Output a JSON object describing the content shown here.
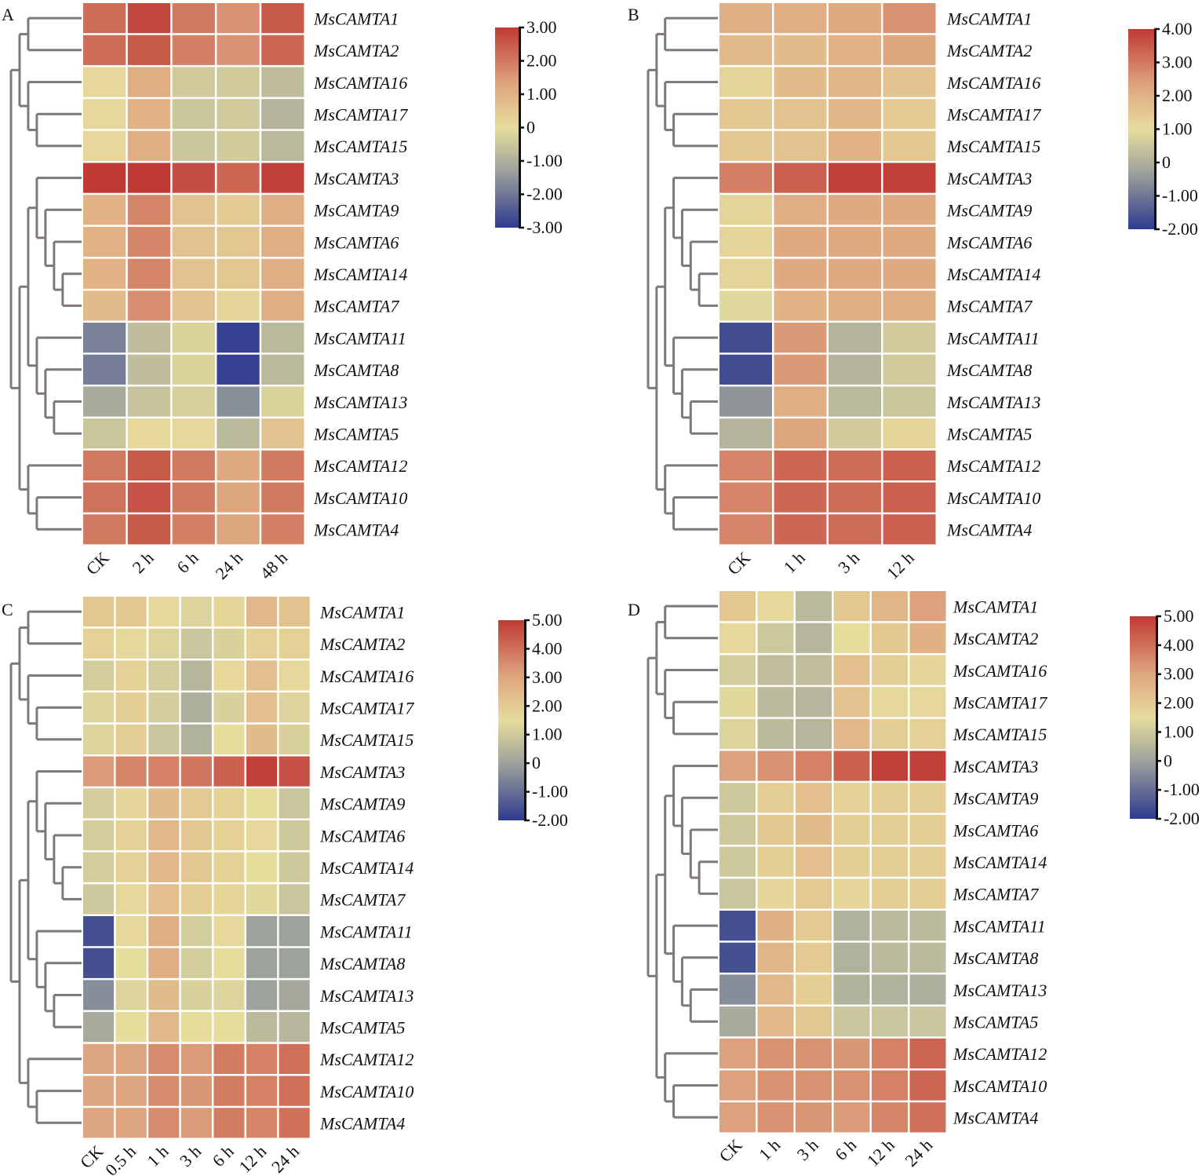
{
  "colors": {
    "low": "#2f3b8f",
    "mid_grey": "#a3a79c",
    "zero": "#e6dc9c",
    "mid_orange": "#dea57f",
    "high": "#bf3a33",
    "cell_gap": "#ffffff",
    "dendrogram": "#7f7878"
  },
  "chart_data": [
    {
      "type": "heatmap",
      "panel": "A",
      "title": "",
      "xlabel": "",
      "ylabel": "",
      "colorbar": {
        "range": [
          -3,
          3
        ],
        "ticks": [
          "3.00",
          "2.00",
          "1.00",
          "0",
          "-1.00",
          "-2.00",
          "-3.00"
        ],
        "tick_values": [
          3,
          2,
          1,
          0,
          -1,
          -2,
          -3
        ],
        "zero_value": 0
      },
      "columns": [
        "CK",
        "2 h",
        "6 h",
        "24 h",
        "48 h"
      ],
      "rows": [
        "MsCAMTA1",
        "MsCAMTA2",
        "MsCAMTA16",
        "MsCAMTA17",
        "MsCAMTA15",
        "MsCAMTA3",
        "MsCAMTA9",
        "MsCAMTA6",
        "MsCAMTA14",
        "MsCAMTA7",
        "MsCAMTA11",
        "MsCAMTA8",
        "MsCAMTA13",
        "MsCAMTA5",
        "MsCAMTA12",
        "MsCAMTA10",
        "MsCAMTA4"
      ],
      "values": [
        [
          2.2,
          2.8,
          2.0,
          1.6,
          2.5
        ],
        [
          2.2,
          2.5,
          1.9,
          1.6,
          2.3
        ],
        [
          0.1,
          1.1,
          -0.4,
          -0.4,
          -0.7
        ],
        [
          0.1,
          1.0,
          -0.5,
          -0.4,
          -0.9
        ],
        [
          0.1,
          1.1,
          -0.5,
          -0.4,
          -0.8
        ],
        [
          3.0,
          3.0,
          2.7,
          2.3,
          2.9
        ],
        [
          1.0,
          1.8,
          0.6,
          0.4,
          1.1
        ],
        [
          1.0,
          1.8,
          0.6,
          0.5,
          1.1
        ],
        [
          1.0,
          1.8,
          0.6,
          0.5,
          1.1
        ],
        [
          0.8,
          1.7,
          0.6,
          0.2,
          1.1
        ],
        [
          -1.8,
          -0.7,
          -0.2,
          -2.9,
          -0.8
        ],
        [
          -1.9,
          -0.7,
          -0.2,
          -2.9,
          -0.8
        ],
        [
          -1.1,
          -0.6,
          -0.3,
          -1.6,
          -0.2
        ],
        [
          -0.5,
          0.1,
          0.1,
          -0.8,
          0.6
        ],
        [
          2.0,
          2.5,
          2.0,
          1.2,
          2.0
        ],
        [
          2.1,
          2.6,
          2.0,
          1.3,
          2.0
        ],
        [
          2.0,
          2.5,
          1.9,
          1.3,
          1.9
        ]
      ],
      "dendrogram": "((MsCAMTA1,MsCAMTA2),(MsCAMTA16,(MsCAMTA17,MsCAMTA15))),(((MsCAMTA3,(MsCAMTA9,(MsCAMTA6,(MsCAMTA14,MsCAMTA7)))),(MsCAMTA11,(MsCAMTA8,(MsCAMTA13,MsCAMTA5)))),(MsCAMTA12,(MsCAMTA10,MsCAMTA4)))"
    },
    {
      "type": "heatmap",
      "panel": "B",
      "title": "",
      "xlabel": "",
      "ylabel": "",
      "colorbar": {
        "range": [
          -2,
          4
        ],
        "ticks": [
          "4.00",
          "3.00",
          "2.00",
          "1.00",
          "0",
          "-1.00",
          "-2.00"
        ],
        "tick_values": [
          4,
          3,
          2,
          1,
          0,
          -1,
          -2
        ],
        "zero_value": 1
      },
      "columns": [
        "CK",
        "1 h",
        "3 h",
        "12 h"
      ],
      "rows": [
        "MsCAMTA1",
        "MsCAMTA2",
        "MsCAMTA16",
        "MsCAMTA17",
        "MsCAMTA15",
        "MsCAMTA3",
        "MsCAMTA9",
        "MsCAMTA6",
        "MsCAMTA14",
        "MsCAMTA7",
        "MsCAMTA11",
        "MsCAMTA8",
        "MsCAMTA13",
        "MsCAMTA5",
        "MsCAMTA12",
        "MsCAMTA10",
        "MsCAMTA4"
      ],
      "values": [
        [
          2.1,
          2.1,
          2.2,
          2.6
        ],
        [
          1.8,
          1.8,
          2.0,
          2.3
        ],
        [
          1.2,
          1.8,
          1.9,
          1.6
        ],
        [
          1.5,
          1.6,
          1.9,
          1.4
        ],
        [
          1.5,
          1.6,
          2.0,
          1.5
        ],
        [
          2.9,
          3.4,
          3.9,
          3.9
        ],
        [
          1.2,
          2.1,
          2.2,
          2.2
        ],
        [
          1.2,
          2.2,
          2.2,
          2.2
        ],
        [
          1.2,
          2.2,
          2.2,
          2.2
        ],
        [
          0.9,
          2.0,
          2.1,
          2.1
        ],
        [
          -1.7,
          2.5,
          0.1,
          0.6
        ],
        [
          -1.7,
          2.5,
          0.1,
          0.6
        ],
        [
          -0.5,
          2.1,
          0.2,
          0.5
        ],
        [
          0.1,
          2.3,
          0.6,
          1.2
        ],
        [
          2.8,
          3.3,
          3.2,
          3.4
        ],
        [
          2.8,
          3.3,
          3.2,
          3.4
        ],
        [
          2.8,
          3.3,
          3.2,
          3.4
        ]
      ],
      "dendrogram": "((MsCAMTA1,MsCAMTA2),(MsCAMTA16,(MsCAMTA17,MsCAMTA15))),(((MsCAMTA3,(MsCAMTA9,(MsCAMTA6,(MsCAMTA14,MsCAMTA7)))),(MsCAMTA11,(MsCAMTA8,(MsCAMTA13,MsCAMTA5)))),(MsCAMTA12,(MsCAMTA10,MsCAMTA4)))"
    },
    {
      "type": "heatmap",
      "panel": "C",
      "title": "",
      "xlabel": "",
      "ylabel": "",
      "colorbar": {
        "range": [
          -2,
          5
        ],
        "ticks": [
          "5.00",
          "4.00",
          "3.00",
          "2.00",
          "1.00",
          "0",
          "-1.00",
          "-2.00"
        ],
        "tick_values": [
          5,
          4,
          3,
          2,
          1,
          0,
          -1,
          -2
        ],
        "zero_value": 1.5
      },
      "columns": [
        "CK",
        "0.5 h",
        "1 h",
        "3 h",
        "6 h",
        "12 h",
        "24 h"
      ],
      "rows": [
        "MsCAMTA1",
        "MsCAMTA2",
        "MsCAMTA16",
        "MsCAMTA17",
        "MsCAMTA15",
        "MsCAMTA3",
        "MsCAMTA9",
        "MsCAMTA6",
        "MsCAMTA14",
        "MsCAMTA7",
        "MsCAMTA11",
        "MsCAMTA8",
        "MsCAMTA13",
        "MsCAMTA5",
        "MsCAMTA12",
        "MsCAMTA10",
        "MsCAMTA4"
      ],
      "values": [
        [
          2.1,
          2.1,
          1.6,
          1.3,
          1.7,
          2.5,
          2.2
        ],
        [
          1.8,
          1.6,
          1.3,
          0.9,
          1.2,
          1.8,
          1.8
        ],
        [
          1.1,
          1.8,
          1.1,
          0.5,
          1.6,
          2.3,
          1.6
        ],
        [
          1.3,
          1.9,
          1.1,
          0.3,
          1.2,
          2.3,
          1.3
        ],
        [
          1.3,
          1.9,
          0.9,
          0.4,
          1.5,
          2.4,
          1.2
        ],
        [
          3.2,
          3.6,
          3.7,
          3.9,
          4.3,
          4.9,
          4.6
        ],
        [
          1.1,
          1.7,
          2.4,
          2.0,
          1.8,
          1.5,
          0.9
        ],
        [
          1.1,
          1.8,
          2.5,
          2.1,
          1.8,
          1.6,
          1.0
        ],
        [
          1.1,
          1.8,
          2.5,
          2.1,
          1.8,
          1.5,
          1.0
        ],
        [
          1.0,
          1.6,
          2.3,
          1.9,
          1.7,
          1.4,
          0.9
        ],
        [
          -1.6,
          1.6,
          2.8,
          1.1,
          1.6,
          0.0,
          0.0
        ],
        [
          -1.6,
          1.5,
          2.8,
          1.1,
          1.5,
          0.0,
          0.0
        ],
        [
          -0.4,
          1.3,
          2.4,
          1.2,
          1.3,
          0.0,
          0.1
        ],
        [
          0.2,
          1.5,
          2.5,
          1.5,
          1.5,
          0.6,
          0.5
        ],
        [
          3.0,
          3.0,
          3.5,
          3.2,
          3.8,
          3.7,
          4.0
        ],
        [
          3.0,
          3.0,
          3.5,
          3.3,
          3.8,
          3.7,
          4.0
        ],
        [
          3.0,
          3.0,
          3.5,
          3.2,
          3.8,
          3.6,
          4.0
        ]
      ],
      "dendrogram": "((MsCAMTA1,MsCAMTA2),(MsCAMTA16,(MsCAMTA17,MsCAMTA15))),(((MsCAMTA3,(MsCAMTA9,(MsCAMTA6,(MsCAMTA14,MsCAMTA7)))),(MsCAMTA11,(MsCAMTA8,(MsCAMTA13,MsCAMTA5)))),(MsCAMTA12,(MsCAMTA10,MsCAMTA4)))"
    },
    {
      "type": "heatmap",
      "panel": "D",
      "title": "",
      "xlabel": "",
      "ylabel": "",
      "colorbar": {
        "range": [
          -2,
          5
        ],
        "ticks": [
          "5.00",
          "4.00",
          "3.00",
          "2.00",
          "1.00",
          "0",
          "-1.00",
          "-2.00"
        ],
        "tick_values": [
          5,
          4,
          3,
          2,
          1,
          0,
          -1,
          -2
        ],
        "zero_value": 1.5
      },
      "columns": [
        "CK",
        "1 h",
        "3 h",
        "6 h",
        "12 h",
        "24 h"
      ],
      "rows": [
        "MsCAMTA1",
        "MsCAMTA2",
        "MsCAMTA16",
        "MsCAMTA17",
        "MsCAMTA15",
        "MsCAMTA3",
        "MsCAMTA9",
        "MsCAMTA6",
        "MsCAMTA14",
        "MsCAMTA7",
        "MsCAMTA11",
        "MsCAMTA8",
        "MsCAMTA13",
        "MsCAMTA5",
        "MsCAMTA12",
        "MsCAMTA10",
        "MsCAMTA4"
      ],
      "values": [
        [
          2.1,
          1.6,
          0.6,
          2.1,
          2.6,
          3.1
        ],
        [
          1.6,
          1.0,
          0.5,
          1.5,
          2.1,
          2.7
        ],
        [
          1.1,
          0.7,
          0.7,
          2.3,
          1.9,
          1.7
        ],
        [
          1.4,
          0.6,
          0.5,
          2.2,
          1.6,
          1.6
        ],
        [
          1.3,
          0.6,
          0.5,
          2.5,
          1.9,
          1.8
        ],
        [
          3.1,
          3.4,
          3.7,
          4.3,
          4.9,
          4.9
        ],
        [
          1.0,
          1.9,
          2.3,
          1.8,
          1.9,
          1.9
        ],
        [
          1.0,
          2.1,
          2.4,
          1.9,
          1.9,
          1.9
        ],
        [
          1.0,
          1.9,
          2.3,
          1.9,
          1.9,
          1.9
        ],
        [
          0.9,
          1.7,
          2.0,
          1.7,
          1.9,
          1.9
        ],
        [
          -1.6,
          2.7,
          2.0,
          0.4,
          0.6,
          0.6
        ],
        [
          -1.6,
          2.6,
          2.0,
          0.4,
          0.6,
          0.6
        ],
        [
          -0.4,
          2.5,
          1.9,
          0.4,
          0.4,
          0.3
        ],
        [
          0.2,
          2.5,
          2.1,
          0.9,
          0.9,
          0.9
        ],
        [
          3.1,
          3.4,
          3.4,
          3.3,
          3.7,
          4.2
        ],
        [
          3.1,
          3.4,
          3.4,
          3.4,
          3.7,
          4.2
        ],
        [
          3.1,
          3.4,
          3.3,
          3.2,
          3.6,
          4.0
        ]
      ],
      "dendrogram": "((MsCAMTA1,MsCAMTA2),(MsCAMTA16,(MsCAMTA17,MsCAMTA15))),(((MsCAMTA3,(MsCAMTA9,(MsCAMTA6,(MsCAMTA14,MsCAMTA7)))),(MsCAMTA11,(MsCAMTA8,(MsCAMTA13,MsCAMTA5)))),(MsCAMTA12,(MsCAMTA10,MsCAMTA4)))"
    }
  ]
}
